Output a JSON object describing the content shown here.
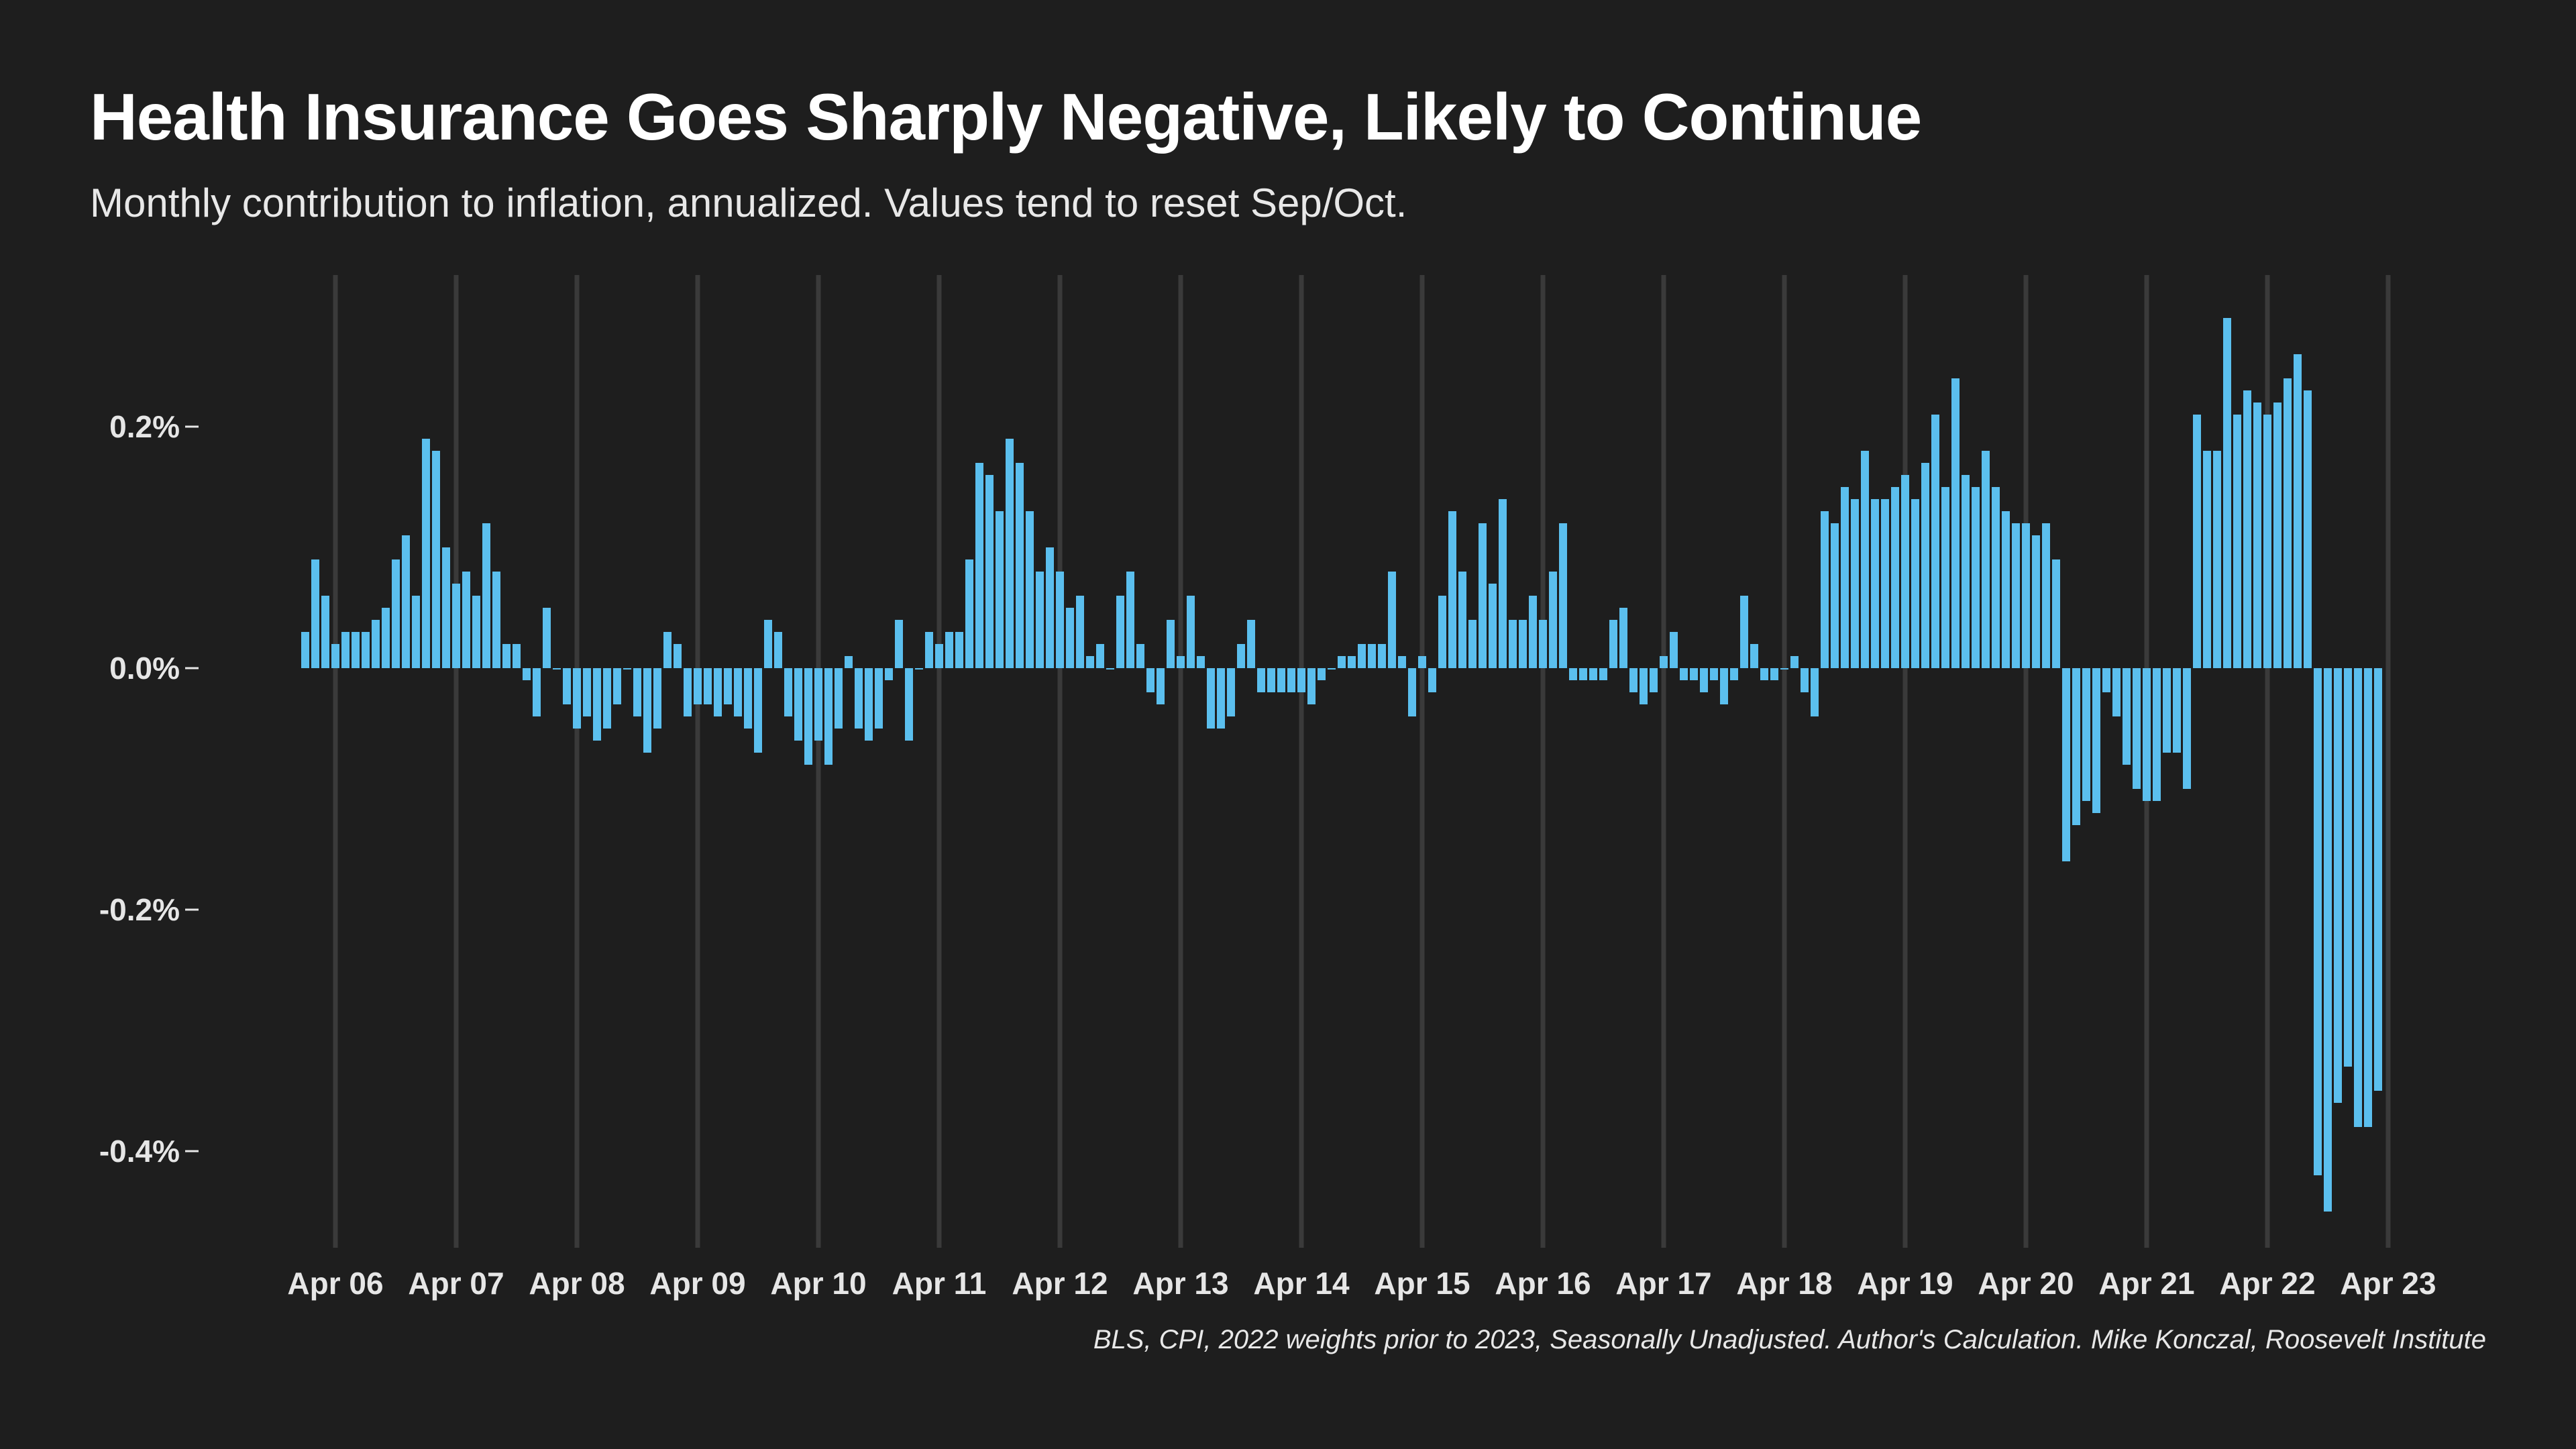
{
  "title": "Health Insurance Goes Sharply Negative, Likely to Continue",
  "subtitle": "Monthly contribution to inflation, annualized. Values tend to reset Sep/Oct.",
  "source": "BLS, CPI, 2022 weights prior to 2023, Seasonally Unadjusted. Author's Calculation. Mike Konczal, Roosevelt Institute",
  "colors": {
    "background": "#1e1e1e",
    "bar": "#5bbfee",
    "gridline": "#3a3a3a",
    "text": "#ffffff"
  },
  "chart_data": {
    "type": "bar",
    "unit": "%",
    "xlabel": "",
    "ylabel": "",
    "ylim": [
      -0.48,
      0.33
    ],
    "yticks": [
      {
        "value": 0.2,
        "label": "0.2%"
      },
      {
        "value": 0.0,
        "label": "0.0%"
      },
      {
        "value": -0.2,
        "label": "-0.2%"
      },
      {
        "value": -0.4,
        "label": "-0.4%"
      }
    ],
    "xticks": [
      "Apr 06",
      "Apr 07",
      "Apr 08",
      "Apr 09",
      "Apr 10",
      "Apr 11",
      "Apr 12",
      "Apr 13",
      "Apr 14",
      "Apr 15",
      "Apr 16",
      "Apr 17",
      "Apr 18",
      "Apr 19",
      "Apr 20",
      "Apr 21",
      "Apr 22",
      "Apr 23"
    ],
    "grid": "vertical lines at April of each year",
    "first_month": "Jan 2006",
    "values": [
      0.03,
      0.09,
      0.06,
      0.02,
      0.03,
      0.03,
      0.03,
      0.04,
      0.05,
      0.09,
      0.11,
      0.06,
      0.19,
      0.18,
      0.1,
      0.07,
      0.08,
      0.06,
      0.12,
      0.08,
      0.02,
      0.02,
      -0.01,
      -0.04,
      0.05,
      0.0,
      -0.03,
      -0.05,
      -0.04,
      -0.06,
      -0.05,
      -0.03,
      0.0,
      -0.04,
      -0.07,
      -0.05,
      0.03,
      0.02,
      -0.04,
      -0.03,
      -0.03,
      -0.04,
      -0.03,
      -0.04,
      -0.05,
      -0.07,
      0.04,
      0.03,
      -0.04,
      -0.06,
      -0.08,
      -0.06,
      -0.08,
      -0.05,
      0.01,
      -0.05,
      -0.06,
      -0.05,
      -0.01,
      0.04,
      -0.06,
      0.0,
      0.03,
      0.02,
      0.03,
      0.03,
      0.09,
      0.17,
      0.16,
      0.13,
      0.19,
      0.17,
      0.13,
      0.08,
      0.1,
      0.08,
      0.05,
      0.06,
      0.01,
      0.02,
      0.0,
      0.06,
      0.08,
      0.02,
      -0.02,
      -0.03,
      0.04,
      0.01,
      0.06,
      0.01,
      -0.05,
      -0.05,
      -0.04,
      0.02,
      0.04,
      -0.02,
      -0.02,
      -0.02,
      -0.02,
      -0.02,
      -0.03,
      -0.01,
      0.0,
      0.01,
      0.01,
      0.02,
      0.02,
      0.02,
      0.08,
      0.01,
      -0.04,
      0.01,
      -0.02,
      0.06,
      0.13,
      0.08,
      0.04,
      0.12,
      0.07,
      0.14,
      0.04,
      0.04,
      0.06,
      0.04,
      0.08,
      0.12,
      -0.01,
      -0.01,
      -0.01,
      -0.01,
      0.04,
      0.05,
      -0.02,
      -0.03,
      -0.02,
      0.01,
      0.03,
      -0.01,
      -0.01,
      -0.02,
      -0.01,
      -0.03,
      -0.01,
      0.06,
      0.02,
      -0.01,
      -0.01,
      0.0,
      0.01,
      -0.02,
      -0.04,
      0.13,
      0.12,
      0.15,
      0.14,
      0.18,
      0.14,
      0.14,
      0.15,
      0.16,
      0.14,
      0.17,
      0.21,
      0.15,
      0.24,
      0.16,
      0.15,
      0.18,
      0.15,
      0.13,
      0.12,
      0.12,
      0.11,
      0.12,
      0.09,
      -0.16,
      -0.13,
      -0.11,
      -0.12,
      -0.02,
      -0.04,
      -0.08,
      -0.1,
      -0.11,
      -0.11,
      -0.07,
      -0.07,
      -0.1,
      0.21,
      0.18,
      0.18,
      0.29,
      0.21,
      0.23,
      0.22,
      0.21,
      0.22,
      0.24,
      0.26,
      0.23,
      -0.42,
      -0.45,
      -0.36,
      -0.33,
      -0.38,
      -0.38,
      -0.35
    ]
  }
}
